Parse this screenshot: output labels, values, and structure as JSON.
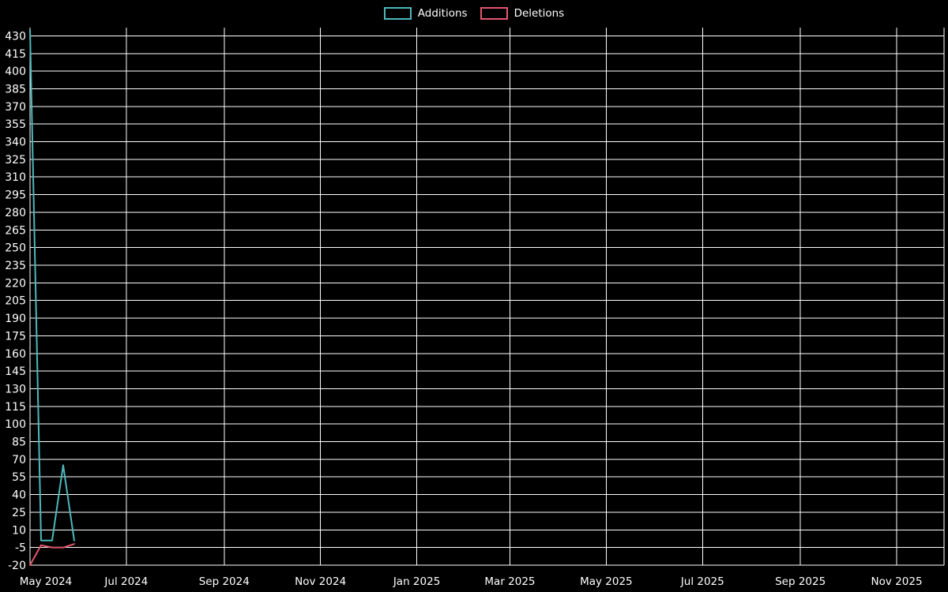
{
  "legend": {
    "items": [
      {
        "label": "Additions",
        "color": "#4db8bc"
      },
      {
        "label": "Deletions",
        "color": "#e4566e"
      }
    ]
  },
  "chart_data": {
    "type": "line",
    "background_color": "#000000",
    "text_color": "#ffffff",
    "grid_color": "#ffffff",
    "grid": true,
    "legend_position": "top-center",
    "y_axis": {
      "min": -20,
      "max": 437,
      "tick_step": 15,
      "ticks": [
        430,
        415,
        400,
        385,
        370,
        355,
        340,
        325,
        310,
        295,
        280,
        265,
        250,
        235,
        220,
        205,
        190,
        175,
        160,
        145,
        130,
        115,
        100,
        85,
        70,
        55,
        40,
        25,
        10,
        -5,
        -20
      ]
    },
    "x_axis": {
      "start": "2024-05-01",
      "end": "2025-12-01",
      "ticks": [
        {
          "label": "May 2024",
          "date": "2024-05-01"
        },
        {
          "label": "Jul 2024",
          "date": "2024-07-01"
        },
        {
          "label": "Sep 2024",
          "date": "2024-09-01"
        },
        {
          "label": "Nov 2024",
          "date": "2024-11-01"
        },
        {
          "label": "Jan 2025",
          "date": "2025-01-01"
        },
        {
          "label": "Mar 2025",
          "date": "2025-03-01"
        },
        {
          "label": "May 2025",
          "date": "2025-05-01"
        },
        {
          "label": "Jul 2025",
          "date": "2025-07-01"
        },
        {
          "label": "Sep 2025",
          "date": "2025-09-01"
        },
        {
          "label": "Nov 2025",
          "date": "2025-11-01"
        }
      ]
    },
    "series": [
      {
        "name": "Additions",
        "color": "#4db8bc",
        "x": [
          "2024-05-01",
          "2024-05-08",
          "2024-05-15",
          "2024-05-22",
          "2024-05-29"
        ],
        "values": [
          435,
          1,
          1,
          65,
          1
        ]
      },
      {
        "name": "Deletions",
        "color": "#e4566e",
        "x": [
          "2024-05-01",
          "2024-05-08",
          "2024-05-15",
          "2024-05-22",
          "2024-05-29"
        ],
        "values": [
          -20,
          -3,
          -5,
          -5,
          -2
        ]
      }
    ]
  }
}
